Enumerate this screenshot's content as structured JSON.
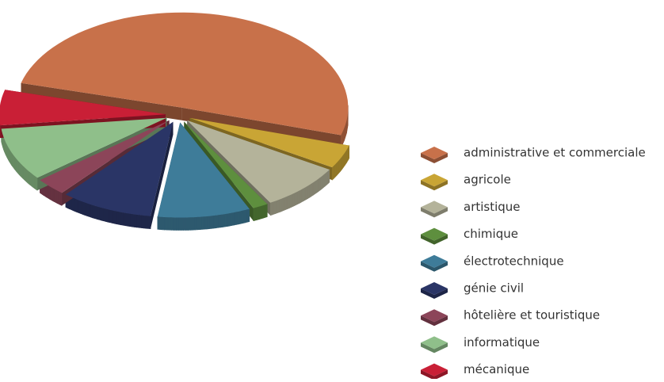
{
  "chart_data": {
    "type": "pie",
    "categories": [
      "administrative et commerciale",
      "agricole",
      "artistique",
      "chimique",
      "électrotechnique",
      "génie civil",
      "hôtelière et touristique",
      "informatique",
      "mécanique"
    ],
    "values": [
      50.5,
      4,
      8,
      1.5,
      9,
      9,
      3,
      9,
      6
    ],
    "colors": [
      "#c8714a",
      "#c9a535",
      "#b4b39a",
      "#5e8f3e",
      "#3e7c99",
      "#2a3566",
      "#8c4559",
      "#8fbf8a",
      "#c91f36"
    ],
    "legend": "right"
  }
}
